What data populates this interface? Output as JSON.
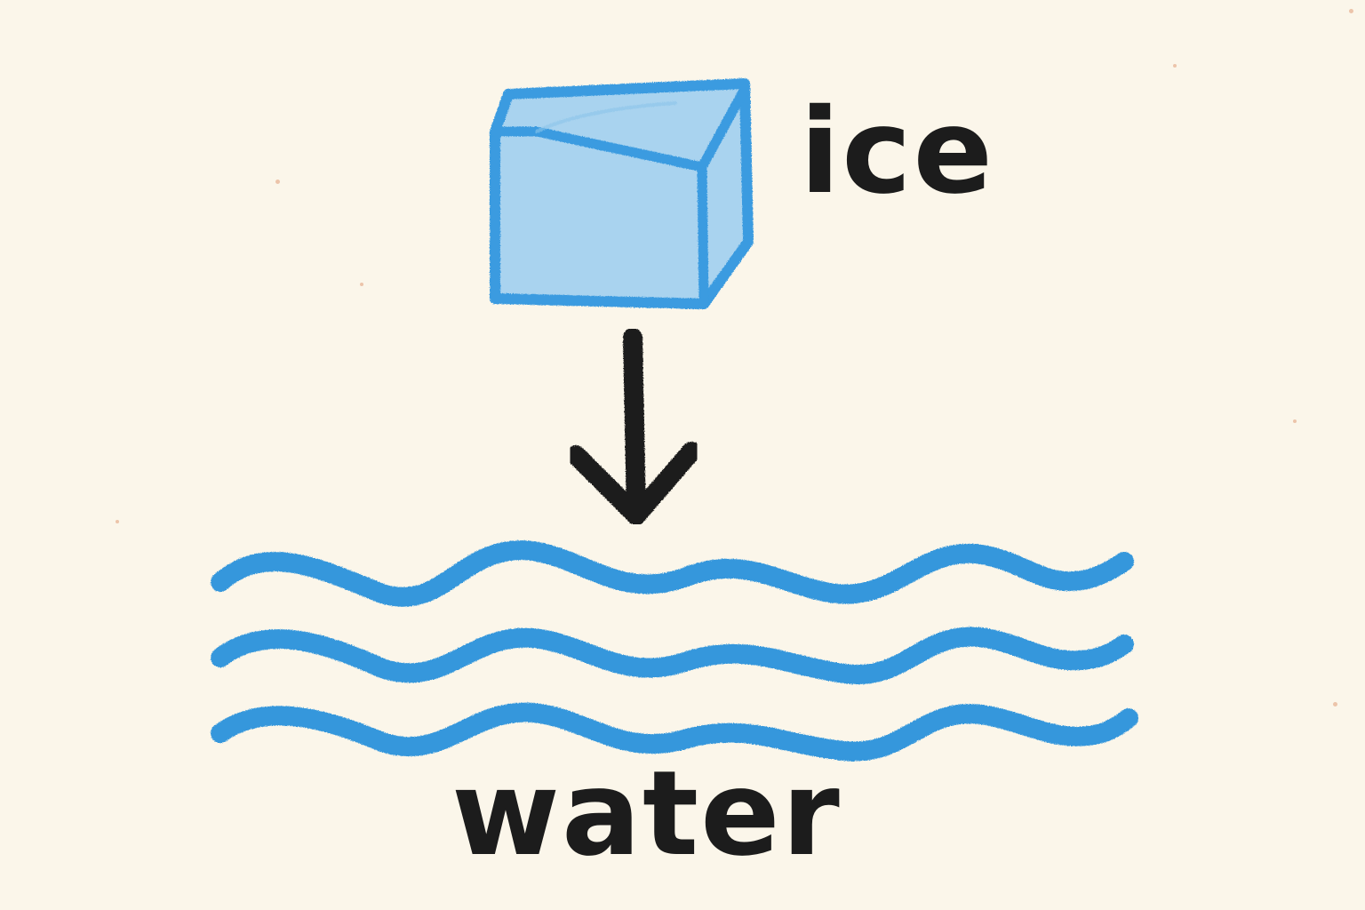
{
  "labels": {
    "ice": "ice",
    "water": "water"
  },
  "colors": {
    "paper": "#fbf6ea",
    "ice_fill": "#a9d3ef",
    "ice_outline": "#3a9be0",
    "water": "#3597dc",
    "ink": "#1c1c1c"
  },
  "icons": {
    "ice": "ice-cube-icon",
    "arrow": "arrow-down-icon",
    "water": "water-waves-icon"
  }
}
